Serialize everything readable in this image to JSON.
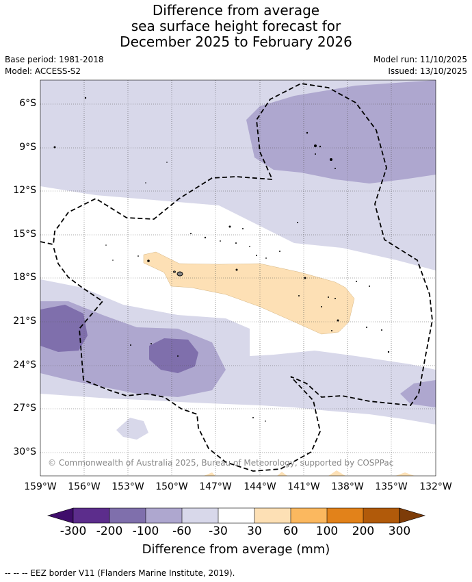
{
  "title": {
    "line1": "Difference from average",
    "line2": "sea surface height forecast for",
    "line3": "December 2025 to February 2026"
  },
  "meta": {
    "base_period": "Base period: 1981-2018",
    "model": "Model: ACCESS-S2",
    "model_run": "Model run: 11/10/2025",
    "issued": "Issued: 13/10/2025"
  },
  "map": {
    "latitude_labels": [
      "6°S",
      "9°S",
      "12°S",
      "15°S",
      "18°S",
      "21°S",
      "24°S",
      "27°S",
      "30°S"
    ],
    "longitude_labels": [
      "159°W",
      "156°W",
      "153°W",
      "150°W",
      "147°W",
      "144°W",
      "141°W",
      "138°W",
      "135°W",
      "132°W"
    ],
    "credit": "© Commonwealth of Australia 2025, Bureau of Meteorology, supported by COSPPac"
  },
  "colorbar": {
    "ticks": [
      "-300",
      "-200",
      "-100",
      "-60",
      "-30",
      "30",
      "60",
      "100",
      "200",
      "300"
    ],
    "colors": [
      "#3f0d6b",
      "#5c2d8c",
      "#7f6fac",
      "#aea7cf",
      "#d8d8ea",
      "#ffffff",
      "#fde0b5",
      "#fbb85f",
      "#e2821a",
      "#b15a0a",
      "#7d3c08"
    ],
    "label": "Difference from average (mm)"
  },
  "footnote": "--  --  -- EEZ border V11 (Flanders Marine Institute, 2019)."
}
